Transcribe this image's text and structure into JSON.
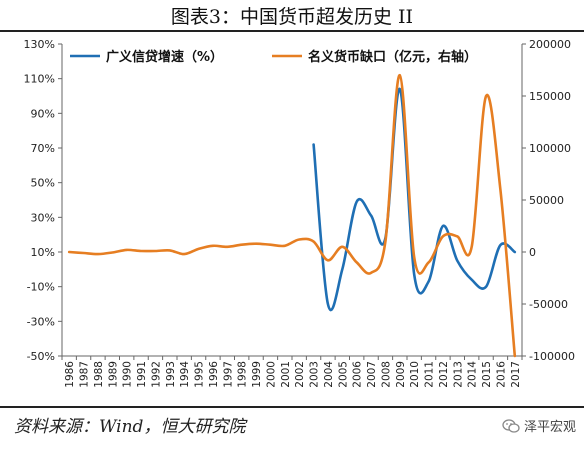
{
  "figure": {
    "title": "图表3：中国货币超发历史 II",
    "source": "资料来源：Wind，恒大研究院",
    "watermark": "泽平宏观"
  },
  "chart_data": {
    "type": "line",
    "x": [
      "1986",
      "1987",
      "1988",
      "1989",
      "1990",
      "1991",
      "1992",
      "1993",
      "1994",
      "1995",
      "1996",
      "1997",
      "1998",
      "1999",
      "2000",
      "2001",
      "2002",
      "2003",
      "2004",
      "2005",
      "2006",
      "2007",
      "2008",
      "2009",
      "2010",
      "2011",
      "2012",
      "2013",
      "2014",
      "2015",
      "2016",
      "2017"
    ],
    "y_left": {
      "ticks": [
        "-50%",
        "-30%",
        "-10%",
        "10%",
        "30%",
        "50%",
        "70%",
        "90%",
        "110%",
        "130%"
      ],
      "lim": [
        -50,
        130
      ]
    },
    "y_right": {
      "ticks": [
        "-100000",
        "-50000",
        "0",
        "50000",
        "100000",
        "150000",
        "200000"
      ],
      "lim": [
        -100000,
        200000
      ]
    },
    "series": [
      {
        "name": "广义信贷增速（%）",
        "axis": "left",
        "color": "#1f6fb4",
        "values": [
          null,
          null,
          null,
          null,
          null,
          null,
          null,
          null,
          null,
          null,
          null,
          null,
          null,
          null,
          null,
          null,
          null,
          72,
          -20,
          0,
          39,
          31,
          18,
          104,
          -3,
          -7,
          25,
          5,
          -6,
          -10,
          14,
          10
        ]
      },
      {
        "name": "名义货币缺口（亿元，右轴）",
        "axis": "right",
        "color": "#e67e22",
        "values": [
          0,
          -1000,
          -2000,
          -500,
          2000,
          1000,
          1000,
          1500,
          -2000,
          3000,
          6000,
          5000,
          7000,
          8000,
          7000,
          6000,
          12000,
          10000,
          -8000,
          5000,
          -10000,
          -20000,
          10000,
          170000,
          -5000,
          -10000,
          15000,
          15000,
          5000,
          150000,
          60000,
          -100000
        ]
      }
    ],
    "legend": "top"
  }
}
